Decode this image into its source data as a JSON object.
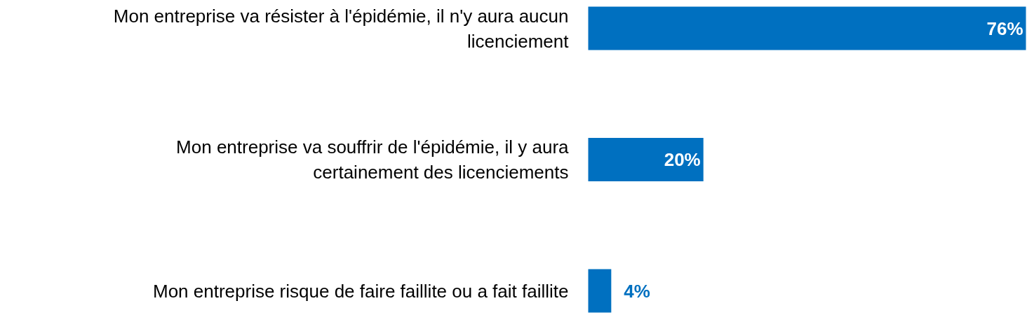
{
  "chart_data": {
    "type": "bar",
    "orientation": "horizontal",
    "categories": [
      "Mon entreprise va résister à l'épidémie, il n'y aura aucun licenciement",
      "Mon entreprise va souffrir de l'épidémie, il y aura certainement des licenciements",
      "Mon entreprise risque de faire faillite ou a fait faillite"
    ],
    "values": [
      76,
      20,
      4
    ],
    "value_labels": [
      "76%",
      "20%",
      "4%"
    ],
    "color": "#0070c0"
  }
}
